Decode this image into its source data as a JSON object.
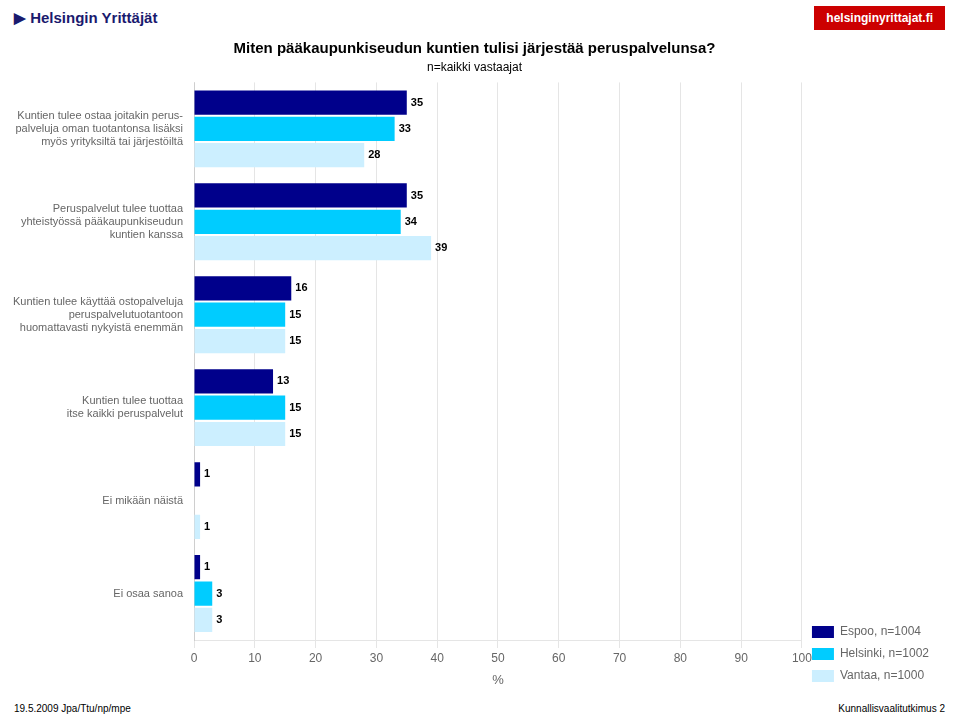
{
  "chart_data": {
    "type": "bar",
    "orientation": "horizontal",
    "title": "Miten pääkaupunkiseudun kuntien tulisi järjestää peruspalvelunsa?",
    "subtitle": "n=kaikki vastaajat",
    "annotations": [
      "▶  Helsingin Yrittäjät",
      "helsinginyrittajat.fi",
      "19.5.2009  Jpa/Ttu/np/mpe",
      "Kunnallisvaalitutkimus 2"
    ],
    "categories": [
      "Kuntien tulee ostaa joitakin perus-\npalveluja oman tuotantonsa lisäksi\nmyös yrityksiltä tai järjestöiltä",
      "Peruspalvelut tulee tuottaa\nyhteistyössä pääkaupunkiseudun\nkuntien kanssa",
      "Kuntien tulee käyttää ostopalveluja\nperuspalvelutuotantoon\nhuomattavasti nykyistä enemmän",
      "Kuntien tulee tuottaa\nitse kaikki peruspalvelut",
      "Ei mikään näistä",
      "Ei osaa sanoa"
    ],
    "series": [
      {
        "name": "Espoo, n=1004",
        "color": "#00008B",
        "values": [
          35,
          35,
          16,
          13,
          1,
          1
        ]
      },
      {
        "name": "Helsinki, n=1002",
        "color": "#00CCFF",
        "values": [
          33,
          34,
          15,
          15,
          0,
          3
        ],
        "value_labels": [
          "33",
          "34",
          "15",
          "15",
          null,
          "3"
        ]
      },
      {
        "name": "Vantaa, n=1000",
        "color": "#CCEFFF",
        "values": [
          28,
          39,
          15,
          15,
          1,
          3
        ]
      }
    ],
    "xlabel": "%",
    "xlim": [
      0,
      100
    ],
    "xticks": [
      0,
      10,
      20,
      30,
      40,
      50,
      60,
      70,
      80,
      90,
      100
    ],
    "grid": true,
    "legend": "lower right",
    "data_labels": true
  }
}
